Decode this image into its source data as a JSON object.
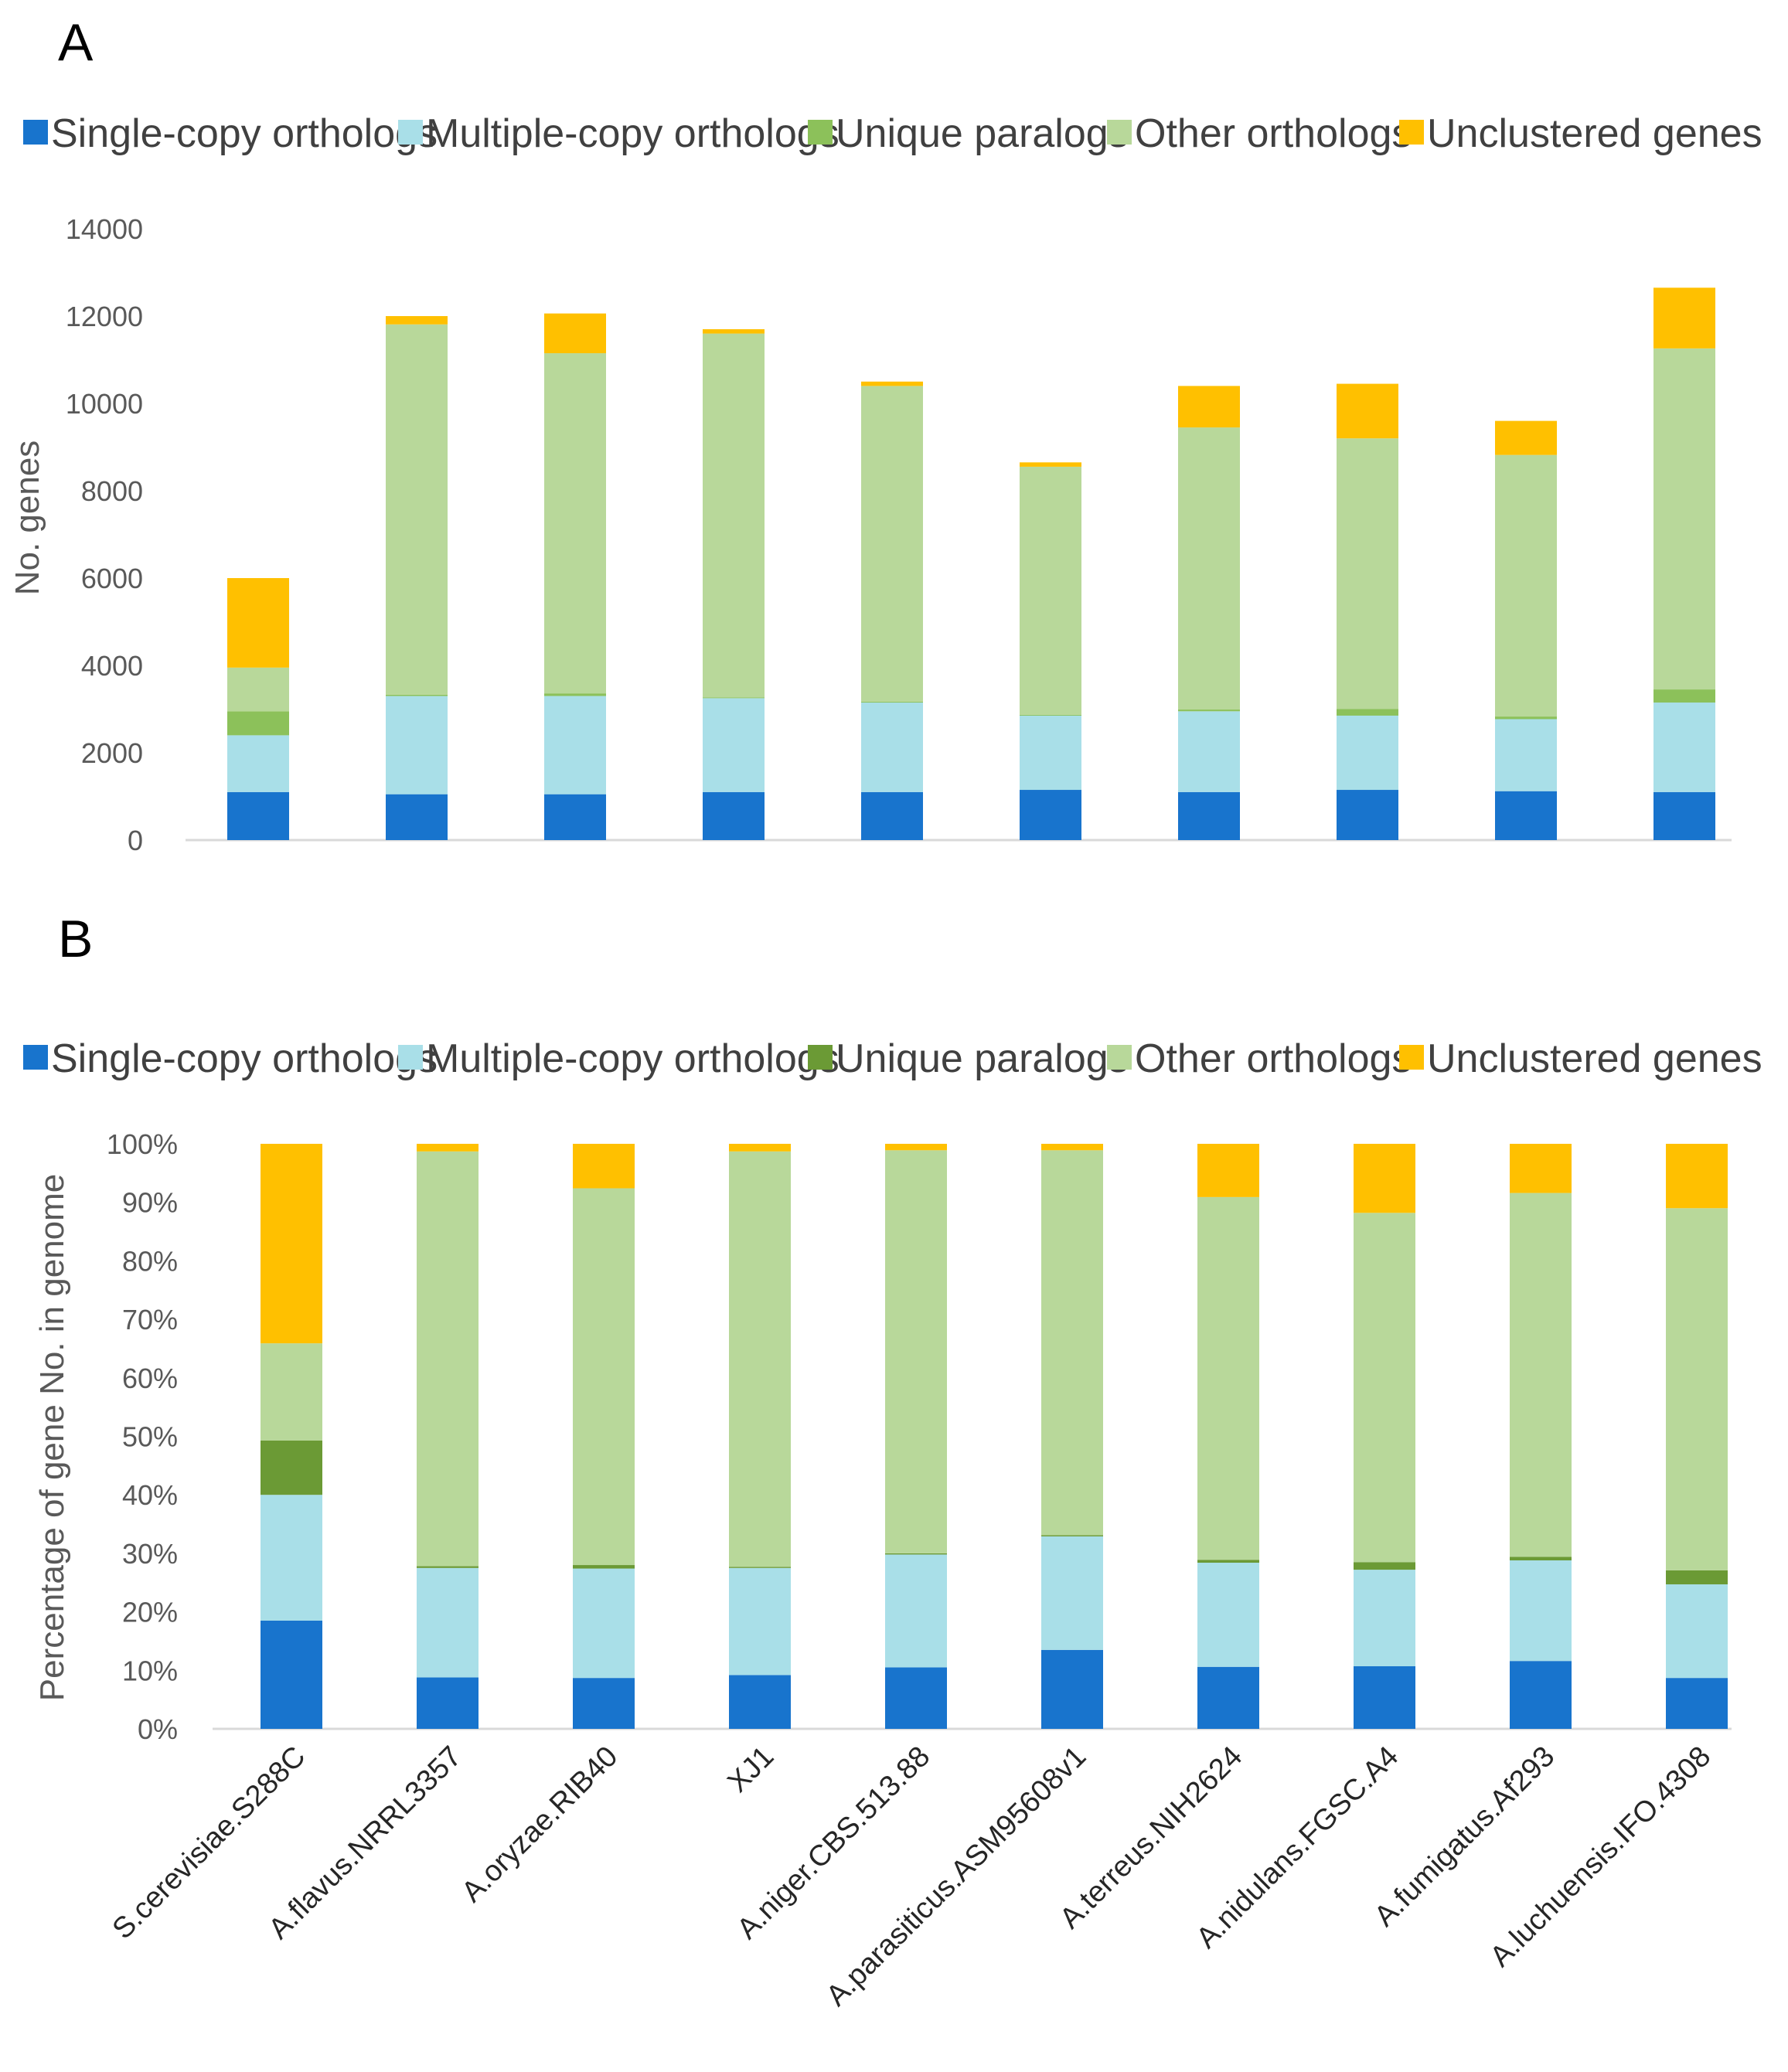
{
  "colors": {
    "single_copy": "#1874CD",
    "multiple_copy": "#A9DFE8",
    "unique_paralogs_a": "#8CC15A",
    "unique_paralogs_b": "#6B9A35",
    "other_orthologs": "#B8D89A",
    "unclustered": "#FFC000",
    "axis": "#D9D9D9"
  },
  "chart_data": [
    {
      "panel": "A",
      "type": "bar",
      "stacked": true,
      "title": "",
      "xlabel": "",
      "ylabel": "No.  genes",
      "ylim": [
        0,
        14000
      ],
      "yticks": [
        0,
        2000,
        4000,
        6000,
        8000,
        10000,
        12000,
        14000
      ],
      "ytick_labels": [
        "0",
        "2000",
        "4000",
        "6000",
        "8000",
        "10000",
        "12000",
        "14000"
      ],
      "legend_position": "top",
      "categories": [
        "S.cerevisiae.S288C",
        "A.flavus.NRRL3357",
        "A.oryzae.RIB40",
        "XJ1",
        "A.niger.CBS.513.88",
        "A.parasiticus.ASM95608v1",
        "A.terreus.NIH2624",
        "A.nidulans.FGSC.A4",
        "A.fumigatus.Af293",
        "A.luchuensis.IFO.4308"
      ],
      "series": [
        {
          "name": "Single-copy orthologs",
          "color_key": "single_copy",
          "values": [
            1100,
            1050,
            1050,
            1100,
            1100,
            1150,
            1100,
            1150,
            1120,
            1100
          ]
        },
        {
          "name": "Multiple-copy orthologs",
          "color_key": "multiple_copy",
          "values": [
            1300,
            2250,
            2250,
            2150,
            2050,
            1700,
            1850,
            1700,
            1650,
            2050
          ]
        },
        {
          "name": "Unique paralogs",
          "color_key": "unique_paralogs_a",
          "values": [
            550,
            30,
            60,
            20,
            20,
            20,
            40,
            150,
            60,
            300
          ]
        },
        {
          "name": "Other orthologs",
          "color_key": "other_orthologs",
          "values": [
            1000,
            8480,
            7790,
            8330,
            7230,
            5680,
            6460,
            6200,
            5990,
            7810
          ]
        },
        {
          "name": "Unclustered genes",
          "color_key": "unclustered",
          "values": [
            2050,
            190,
            910,
            100,
            100,
            100,
            950,
            1250,
            780,
            1390
          ]
        }
      ]
    },
    {
      "panel": "B",
      "type": "bar",
      "stacked": true,
      "title": "",
      "xlabel": "",
      "ylabel": "Percentage of gene No. in genome",
      "ylim": [
        0,
        100
      ],
      "yticks": [
        0,
        10,
        20,
        30,
        40,
        50,
        60,
        70,
        80,
        90,
        100
      ],
      "ytick_labels": [
        "0%",
        "10%",
        "20%",
        "30%",
        "40%",
        "50%",
        "60%",
        "70%",
        "80%",
        "90%",
        "100%"
      ],
      "legend_position": "top",
      "categories": [
        "S.cerevisiae.S288C",
        "A.flavus.NRRL3357",
        "A.oryzae.RIB40",
        "XJ1",
        "A.niger.CBS.513.88",
        "A.parasiticus.ASM95608v1",
        "A.terreus.NIH2624",
        "A.nidulans.FGSC.A4",
        "A.fumigatus.Af293",
        "A.luchuensis.IFO.4308"
      ],
      "series": [
        {
          "name": "Single-copy orthologs",
          "color_key": "single_copy",
          "values": [
            18.5,
            8.8,
            8.7,
            9.2,
            10.5,
            13.5,
            10.6,
            10.7,
            11.6,
            8.7
          ]
        },
        {
          "name": "Multiple-copy orthologs",
          "color_key": "multiple_copy",
          "values": [
            21.5,
            18.7,
            18.7,
            18.3,
            19.3,
            19.4,
            17.8,
            16.5,
            17.2,
            16.0
          ]
        },
        {
          "name": "Unique paralogs",
          "color_key": "unique_paralogs_b",
          "values": [
            9.3,
            0.3,
            0.6,
            0.2,
            0.2,
            0.2,
            0.5,
            1.3,
            0.6,
            2.4
          ]
        },
        {
          "name": "Other orthologs",
          "color_key": "other_orthologs",
          "values": [
            16.6,
            70.9,
            64.4,
            71.0,
            68.9,
            65.8,
            62.0,
            59.7,
            62.2,
            61.9
          ]
        },
        {
          "name": "Unclustered genes",
          "color_key": "unclustered",
          "values": [
            34.1,
            1.3,
            7.6,
            1.3,
            1.1,
            1.1,
            9.1,
            11.8,
            8.4,
            11.0
          ]
        }
      ]
    }
  ]
}
